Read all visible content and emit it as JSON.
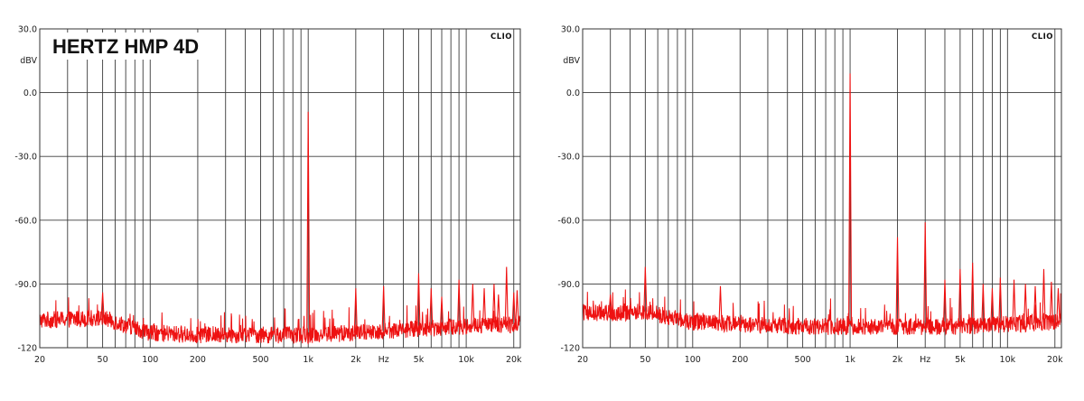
{
  "chart_data": [
    {
      "type": "line",
      "title": "HERTZ HMP 4D",
      "brand": "CLIO",
      "xscale": "log",
      "xlim": [
        20,
        22000
      ],
      "ylim": [
        -120,
        30
      ],
      "ylabel": "dBV",
      "xlabel": "Hz",
      "grid": true,
      "y_ticks": [
        "30.0",
        "0.0",
        "-30.0",
        "-60.0",
        "-90.0",
        "-120"
      ],
      "x_tick_values": [
        20,
        50,
        100,
        200,
        500,
        1000,
        2000,
        5000,
        10000,
        20000
      ],
      "x_tick_labels": [
        "20",
        "50",
        "100",
        "200",
        "500",
        "1k",
        "2k",
        "5k",
        "10k",
        "20k"
      ],
      "x_unit_at": 3000,
      "series_color": "#ee1111",
      "noise_floor": [
        [
          20,
          -107
        ],
        [
          50,
          -106
        ],
        [
          100,
          -113
        ],
        [
          200,
          -114
        ],
        [
          500,
          -114
        ],
        [
          1000,
          -114
        ],
        [
          2000,
          -113
        ],
        [
          5000,
          -111
        ],
        [
          10000,
          -110
        ],
        [
          20000,
          -109
        ],
        [
          22000,
          -108
        ]
      ],
      "peaks": [
        {
          "f": 50,
          "db": -94
        },
        {
          "f": 1000,
          "db": -9
        },
        {
          "f": 2000,
          "db": -92
        },
        {
          "f": 3000,
          "db": -91
        },
        {
          "f": 5000,
          "db": -85
        },
        {
          "f": 6000,
          "db": -92
        },
        {
          "f": 7000,
          "db": -96
        },
        {
          "f": 9000,
          "db": -88
        },
        {
          "f": 11000,
          "db": -90
        },
        {
          "f": 13000,
          "db": -92
        },
        {
          "f": 15000,
          "db": -90
        },
        {
          "f": 16000,
          "db": -95
        },
        {
          "f": 18000,
          "db": -82
        },
        {
          "f": 20000,
          "db": -94
        },
        {
          "f": 21000,
          "db": -93
        }
      ]
    },
    {
      "type": "line",
      "title": "",
      "brand": "CLIO",
      "xscale": "log",
      "xlim": [
        20,
        22000
      ],
      "ylim": [
        -120,
        30
      ],
      "ylabel": "dBV",
      "xlabel": "Hz",
      "grid": true,
      "y_ticks": [
        "30.0",
        "0.0",
        "-30.0",
        "-60.0",
        "-90.0",
        "-120"
      ],
      "x_tick_values": [
        20,
        50,
        100,
        200,
        500,
        1000,
        2000,
        5000,
        10000,
        20000
      ],
      "x_tick_labels": [
        "20",
        "50",
        "100",
        "200",
        "500",
        "1k",
        "2k",
        "5k",
        "10k",
        "20k"
      ],
      "x_unit_at": 3000,
      "series_color": "#ee1111",
      "noise_floor": [
        [
          20,
          -104
        ],
        [
          50,
          -103
        ],
        [
          100,
          -108
        ],
        [
          200,
          -109
        ],
        [
          500,
          -110
        ],
        [
          1000,
          -110
        ],
        [
          2000,
          -110
        ],
        [
          5000,
          -110
        ],
        [
          10000,
          -109
        ],
        [
          20000,
          -108
        ],
        [
          22000,
          -106
        ]
      ],
      "peaks": [
        {
          "f": 30,
          "db": -95
        },
        {
          "f": 50,
          "db": -82
        },
        {
          "f": 150,
          "db": -91
        },
        {
          "f": 1000,
          "db": 9
        },
        {
          "f": 2000,
          "db": -68
        },
        {
          "f": 3000,
          "db": -61
        },
        {
          "f": 4000,
          "db": -88
        },
        {
          "f": 5000,
          "db": -83
        },
        {
          "f": 6000,
          "db": -80
        },
        {
          "f": 7000,
          "db": -90
        },
        {
          "f": 8000,
          "db": -92
        },
        {
          "f": 9000,
          "db": -87
        },
        {
          "f": 11000,
          "db": -88
        },
        {
          "f": 13000,
          "db": -90
        },
        {
          "f": 15000,
          "db": -91
        },
        {
          "f": 17000,
          "db": -83
        },
        {
          "f": 19000,
          "db": -89
        },
        {
          "f": 21000,
          "db": -92
        }
      ]
    }
  ]
}
